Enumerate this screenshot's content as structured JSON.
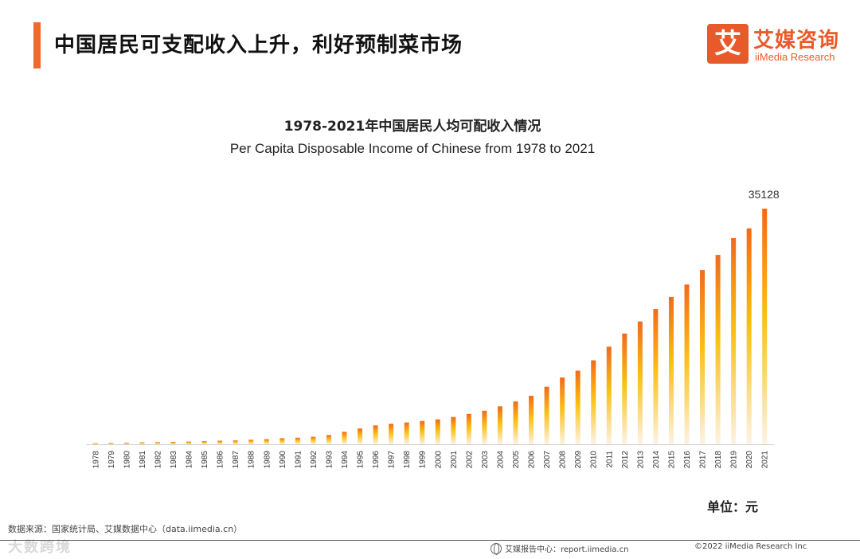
{
  "header": {
    "title": "中国居民可支配收入上升，利好预制菜市场",
    "accent_color": "#ef6a2c"
  },
  "logo": {
    "mark": "艾",
    "name_cn": "艾媒咨询",
    "name_en": "iiMedia Research",
    "color": "#e85a2a"
  },
  "chart_data": {
    "type": "bar",
    "title": "1978-2021年中国居民人均可配收入情况",
    "subtitle": "Per Capita Disposable Income of Chinese from 1978 to 2021",
    "xlabel": "",
    "ylabel": "",
    "ylim": [
      0,
      35128
    ],
    "grid": false,
    "unit_label": "单位：元",
    "categories": [
      "1978",
      "1979",
      "1980",
      "1981",
      "1982",
      "1983",
      "1984",
      "1985",
      "1986",
      "1987",
      "1988",
      "1989",
      "1990",
      "1991",
      "1992",
      "1993",
      "1994",
      "1995",
      "1996",
      "1997",
      "1998",
      "1999",
      "2000",
      "2001",
      "2002",
      "2003",
      "2004",
      "2005",
      "2006",
      "2007",
      "2008",
      "2009",
      "2010",
      "2011",
      "2012",
      "2013",
      "2014",
      "2015",
      "2016",
      "2017",
      "2018",
      "2019",
      "2020",
      "2021"
    ],
    "values": [
      171,
      212,
      247,
      285,
      319,
      361,
      398,
      478,
      540,
      586,
      684,
      771,
      904,
      976,
      1125,
      1385,
      1870,
      2363,
      2814,
      3070,
      3254,
      3485,
      3721,
      4070,
      4532,
      5007,
      5661,
      6385,
      7229,
      8584,
      9957,
      10977,
      12520,
      14551,
      16510,
      18311,
      20167,
      21966,
      23821,
      25974,
      28228,
      30733,
      32189,
      35128
    ],
    "data_labels": [
      {
        "category": "2021",
        "text": "35128"
      }
    ],
    "colors": {
      "top": "#f26a1b",
      "mid": "#fac012",
      "bottom": "#fdf3e6"
    }
  },
  "source": "数据来源：国家统计局、艾媒数据中心（data.iimedia.cn）",
  "watermark": "大数跨境",
  "footer": {
    "report_center": "艾媒报告中心：report.iimedia.cn",
    "copyright": "©2022 iiMedia Research Inc"
  }
}
